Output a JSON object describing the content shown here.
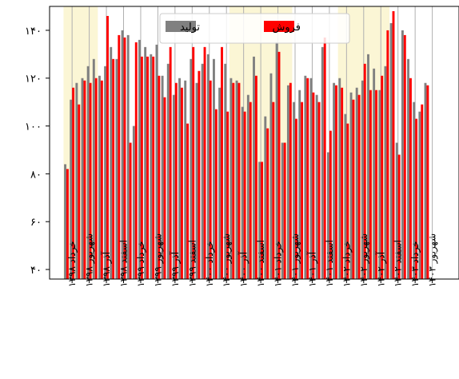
{
  "chart_data": {
    "type": "bar",
    "title": "",
    "xlabel": "",
    "ylabel": "",
    "ylim": [
      36,
      150
    ],
    "y_ticks": [
      40,
      60,
      80,
      100,
      120,
      140
    ],
    "y_tick_labels": [
      "۴۰",
      "۶۰",
      "۸۰",
      "۱۰۰",
      "۱۲۰",
      "۱۴۰"
    ],
    "grid": "vertical",
    "legend_position": "top-center",
    "colors": {
      "production": "#808080",
      "sales": "#ff0000",
      "highlight": "#fbf6d5"
    },
    "x_ticks": [
      {
        "index": 1,
        "label": "خرداد ۱۳۹۸"
      },
      {
        "index": 4,
        "label": "شهریور ۱۳۹۸"
      },
      {
        "index": 7,
        "label": "آذر ۱۳۹۸"
      },
      {
        "index": 10,
        "label": "اسفند ۱۳۹۸"
      },
      {
        "index": 13,
        "label": "خرداد ۱۳۹۹"
      },
      {
        "index": 16,
        "label": "شهریور ۱۳۹۹"
      },
      {
        "index": 19,
        "label": "آذر ۱۳۹۹"
      },
      {
        "index": 22,
        "label": "اسفند ۱۳۹۹"
      },
      {
        "index": 25,
        "label": "خرداد ۱۴۰۰"
      },
      {
        "index": 28,
        "label": "شهریور ۱۴۰۰"
      },
      {
        "index": 31,
        "label": "آذر ۱۴۰۰"
      },
      {
        "index": 34,
        "label": "اسفند ۱۴۰۰"
      },
      {
        "index": 37,
        "label": "خرداد ۱۴۰۱"
      },
      {
        "index": 40,
        "label": "شهریور ۱۴۰۱"
      },
      {
        "index": 43,
        "label": "آذر ۱۴۰۱"
      },
      {
        "index": 46,
        "label": "اسفند ۱۴۰۱"
      },
      {
        "index": 49,
        "label": "خرداد ۱۴۰۲"
      },
      {
        "index": 52,
        "label": "شهریور ۱۴۰۲"
      },
      {
        "index": 55,
        "label": "آذر ۱۴۰۲"
      },
      {
        "index": 58,
        "label": "اسفند ۱۴۰۲"
      },
      {
        "index": 61,
        "label": "خرداد ۱۴۰۳"
      },
      {
        "index": 64,
        "label": "شهریور ۱۴۰۳"
      }
    ],
    "highlight_ranges": [
      [
        0,
        5
      ],
      [
        29,
        39
      ],
      [
        48,
        56
      ]
    ],
    "series": [
      {
        "name": "تولید",
        "values": [
          84,
          111,
          118,
          120,
          125,
          128,
          121,
          125,
          133,
          128,
          140,
          138,
          100,
          136,
          133,
          130,
          134,
          121,
          126,
          113,
          120,
          119,
          128,
          118,
          126,
          130,
          128,
          116,
          126,
          120,
          119,
          108,
          113,
          129,
          85,
          104,
          122,
          135,
          93,
          117,
          110,
          115,
          121,
          120,
          113,
          133,
          89,
          118,
          120,
          105,
          114,
          116,
          119,
          130,
          124,
          115,
          125,
          143,
          93,
          140,
          128,
          110,
          106,
          118
        ]
      },
      {
        "name": "فروش",
        "values": [
          82,
          116,
          109,
          119,
          118,
          120,
          119,
          146,
          128,
          138,
          137,
          93,
          135,
          129,
          129,
          129,
          121,
          112,
          133,
          118,
          116,
          101,
          133,
          123,
          133,
          119,
          107,
          133,
          106,
          118,
          118,
          106,
          110,
          121,
          85,
          99,
          110,
          131,
          93,
          118,
          103,
          110,
          120,
          114,
          110,
          137,
          98,
          117,
          116,
          101,
          111,
          113,
          126,
          115,
          115,
          121,
          140,
          148,
          88,
          138,
          120,
          103,
          109,
          117
        ]
      }
    ]
  }
}
